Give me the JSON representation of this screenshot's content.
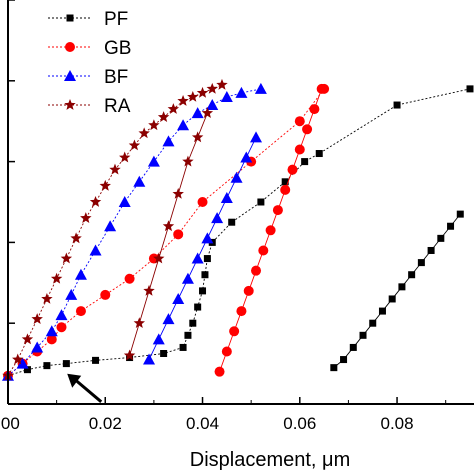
{
  "chart_data": {
    "type": "scatter",
    "xlabel": "Displacement, μm",
    "ylabel": "",
    "xlim": [
      0.0,
      0.095
    ],
    "ylim": [
      0.0,
      1.0
    ],
    "x_ticks": [
      0.0,
      0.02,
      0.04,
      0.06,
      0.08
    ],
    "x_tick_labels": [
      ".00",
      "0.02",
      "0.04",
      "0.06",
      "0.08"
    ],
    "y_ticks": [
      0.0,
      0.2,
      0.4,
      0.6,
      0.8,
      1.0
    ],
    "grid": false,
    "legend_position": "top-left",
    "series": [
      {
        "name": "PF",
        "color": "#000000",
        "marker": "square",
        "x": [
          0.0,
          0.004,
          0.008,
          0.012,
          0.018,
          0.025,
          0.032,
          0.036,
          0.037,
          0.038,
          0.039,
          0.04,
          0.0405,
          0.041,
          0.042,
          0.046,
          0.052,
          0.057,
          0.061,
          0.064,
          0.08,
          0.095,
          0.067,
          0.069,
          0.071,
          0.073,
          0.075,
          0.077,
          0.079,
          0.081,
          0.083,
          0.085,
          0.087,
          0.089,
          0.091,
          0.093
        ],
        "y": [
          0.07,
          0.085,
          0.095,
          0.1,
          0.108,
          0.115,
          0.125,
          0.14,
          0.17,
          0.2,
          0.24,
          0.28,
          0.32,
          0.36,
          0.4,
          0.45,
          0.5,
          0.55,
          0.6,
          0.62,
          0.74,
          0.78,
          0.09,
          0.11,
          0.14,
          0.17,
          0.2,
          0.23,
          0.26,
          0.29,
          0.32,
          0.35,
          0.38,
          0.41,
          0.44,
          0.47
        ]
      },
      {
        "name": "GB",
        "color": "#ff0000",
        "marker": "circle",
        "x": [
          0.0,
          0.003,
          0.006,
          0.009,
          0.011,
          0.015,
          0.02,
          0.025,
          0.03,
          0.035,
          0.04,
          0.05,
          0.06,
          0.065,
          0.0435,
          0.045,
          0.0465,
          0.048,
          0.0495,
          0.051,
          0.0525,
          0.054,
          0.0555,
          0.057,
          0.0585,
          0.06,
          0.0615,
          0.063,
          0.0645
        ],
        "y": [
          0.07,
          0.1,
          0.13,
          0.16,
          0.19,
          0.23,
          0.27,
          0.31,
          0.36,
          0.42,
          0.5,
          0.6,
          0.7,
          0.78,
          0.08,
          0.13,
          0.18,
          0.23,
          0.28,
          0.33,
          0.38,
          0.43,
          0.48,
          0.53,
          0.58,
          0.63,
          0.68,
          0.73,
          0.78
        ]
      },
      {
        "name": "BF",
        "color": "#0000ff",
        "marker": "triangle",
        "x": [
          0.0,
          0.003,
          0.006,
          0.009,
          0.011,
          0.013,
          0.015,
          0.018,
          0.021,
          0.024,
          0.027,
          0.03,
          0.033,
          0.036,
          0.039,
          0.042,
          0.045,
          0.048,
          0.052,
          0.029,
          0.031,
          0.033,
          0.035,
          0.037,
          0.039,
          0.041,
          0.043,
          0.045,
          0.047,
          0.049,
          0.051
        ],
        "y": [
          0.07,
          0.1,
          0.14,
          0.18,
          0.22,
          0.27,
          0.32,
          0.38,
          0.44,
          0.5,
          0.55,
          0.6,
          0.65,
          0.69,
          0.72,
          0.74,
          0.76,
          0.77,
          0.78,
          0.11,
          0.16,
          0.21,
          0.26,
          0.31,
          0.36,
          0.41,
          0.46,
          0.51,
          0.56,
          0.61,
          0.66
        ]
      },
      {
        "name": "RA",
        "color": "#8b0000",
        "marker": "star",
        "x": [
          0.0,
          0.002,
          0.004,
          0.006,
          0.008,
          0.01,
          0.012,
          0.014,
          0.016,
          0.018,
          0.02,
          0.022,
          0.024,
          0.026,
          0.028,
          0.03,
          0.032,
          0.034,
          0.036,
          0.038,
          0.04,
          0.042,
          0.044,
          0.025,
          0.027,
          0.029,
          0.031,
          0.033,
          0.035,
          0.037,
          0.039,
          0.041
        ],
        "y": [
          0.07,
          0.11,
          0.16,
          0.21,
          0.26,
          0.31,
          0.36,
          0.41,
          0.46,
          0.5,
          0.54,
          0.58,
          0.61,
          0.64,
          0.67,
          0.69,
          0.71,
          0.73,
          0.75,
          0.76,
          0.77,
          0.78,
          0.79,
          0.12,
          0.2,
          0.28,
          0.36,
          0.44,
          0.52,
          0.6,
          0.66,
          0.72
        ]
      }
    ],
    "arrow_annotation": {
      "x": 0.013,
      "y": 0.05,
      "direction": "up-left"
    }
  }
}
